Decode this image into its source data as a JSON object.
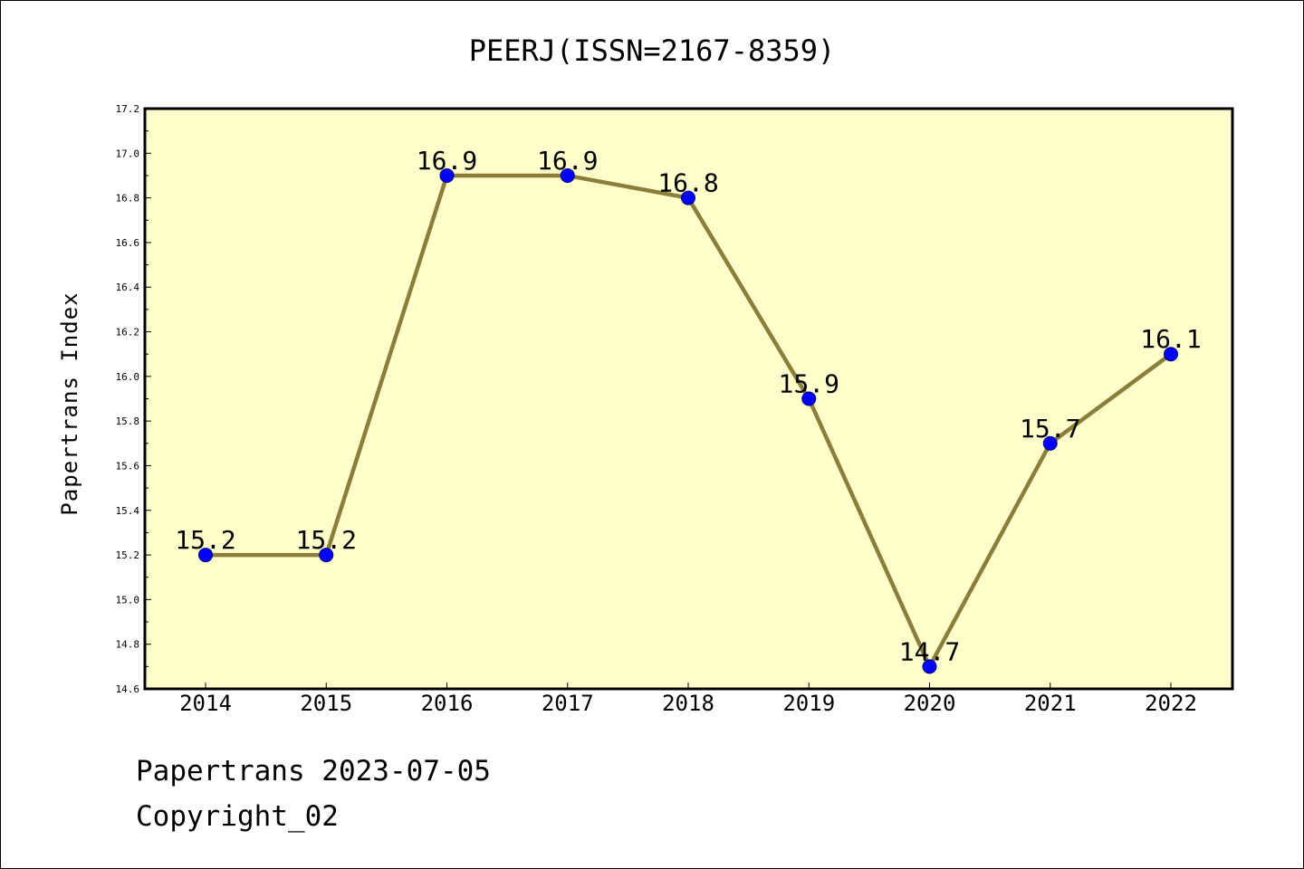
{
  "chart_data": {
    "type": "line",
    "title": "PEERJ(ISSN=2167-8359)",
    "xlabel": "",
    "ylabel": "Papertrans Index",
    "categories": [
      "2014",
      "2015",
      "2016",
      "2017",
      "2018",
      "2019",
      "2020",
      "2021",
      "2022"
    ],
    "series": [
      {
        "values": [
          15.2,
          15.2,
          16.9,
          16.9,
          16.8,
          15.9,
          14.7,
          15.7,
          16.1
        ],
        "data_labels": [
          "15.2",
          "15.2",
          "16.9",
          "16.9",
          "16.8",
          "15.9",
          "14.7",
          "15.7",
          "16.1"
        ]
      }
    ],
    "ylim": [
      14.6,
      17.2
    ],
    "ytick_labels": [
      "14.6",
      "14.8",
      "15.0",
      "15.2",
      "15.4",
      "15.6",
      "15.8",
      "16.0",
      "16.2",
      "16.4",
      "16.6",
      "16.8",
      "17.0",
      "17.2"
    ],
    "grid": false,
    "legend": "none",
    "colors": {
      "plot_background": "#ffffcc",
      "line": "#8b7d3a",
      "marker_fill": "#0000ff",
      "marker_edge": "#000080"
    }
  },
  "footer": {
    "line1": "Papertrans 2023-07-05",
    "line2": "Copyright_02"
  }
}
